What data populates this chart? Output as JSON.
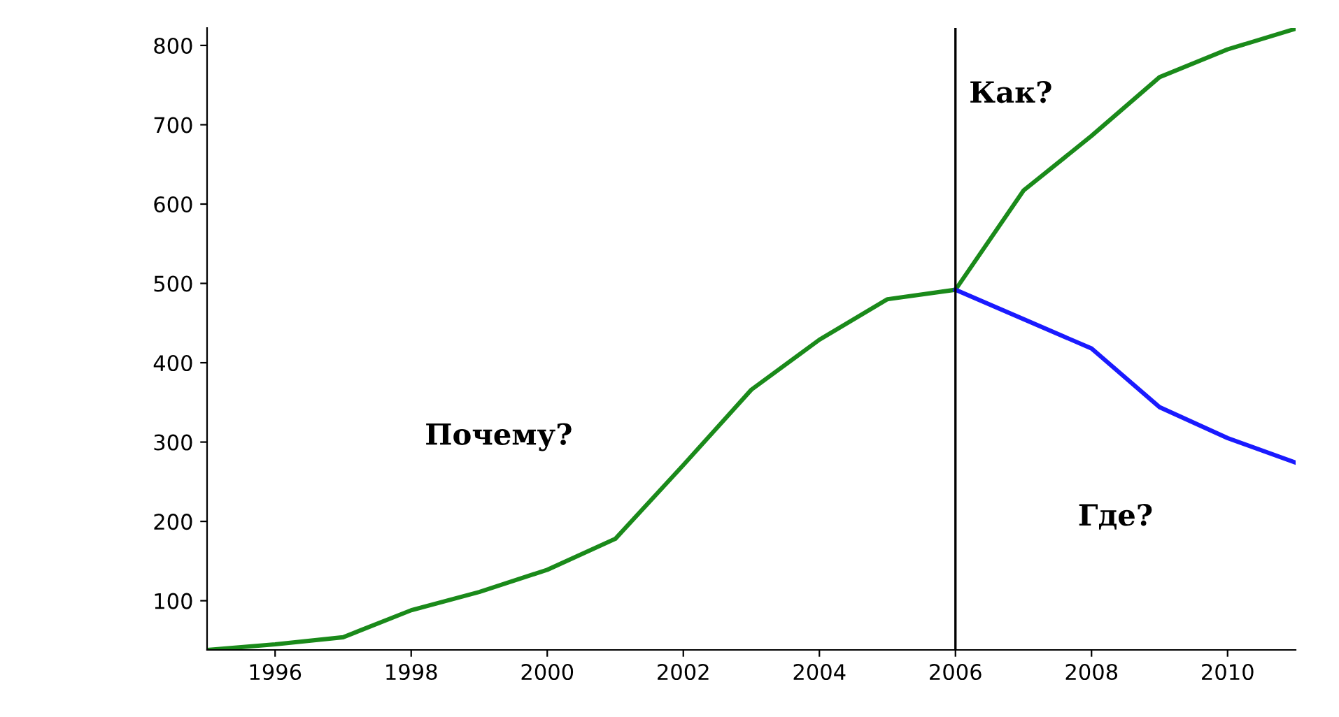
{
  "chart_data": {
    "type": "line",
    "x": [
      1995,
      1996,
      1997,
      1998,
      1999,
      2000,
      2001,
      2002,
      2003,
      2004,
      2005,
      2006,
      2007,
      2008,
      2009,
      2010,
      2011
    ],
    "series": [
      {
        "color": "#1a8a1a",
        "values": [
          38,
          45,
          54,
          88,
          111,
          139,
          178,
          271,
          366,
          429,
          480,
          492,
          617,
          686,
          760,
          795,
          821
        ]
      },
      {
        "color": "#1a1aff",
        "x": [
          2006,
          2007,
          2008,
          2009,
          2010,
          2011
        ],
        "values": [
          492,
          455,
          418,
          344,
          305,
          274
        ]
      }
    ],
    "xlim": [
      1995,
      2011
    ],
    "ylim": [
      38,
      822
    ],
    "xticks": [
      1996,
      1998,
      2000,
      2002,
      2004,
      2006,
      2008,
      2010
    ],
    "yticks": [
      100,
      200,
      300,
      400,
      500,
      600,
      700,
      800
    ],
    "ref_lines": [
      {
        "axis": "x",
        "value": 2006,
        "color": "#000000"
      }
    ],
    "annotations": [
      "Почему?",
      "Как?",
      "Где?"
    ],
    "grid": false,
    "legend": false,
    "marker": "none",
    "line_style": "solid"
  }
}
